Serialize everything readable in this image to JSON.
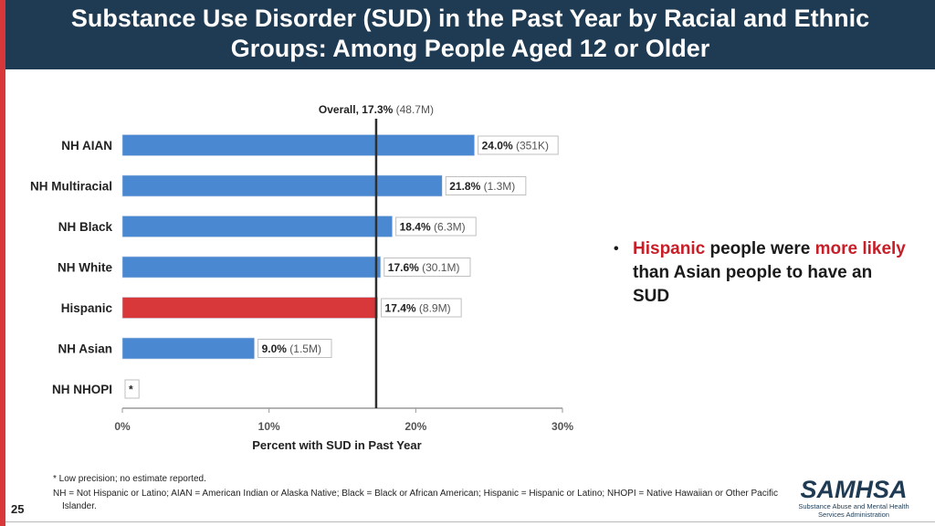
{
  "title_line1": "Substance Use Disorder (SUD) in the Past Year by Racial and Ethnic",
  "title_line2": "Groups: Among People Aged 12 or Older",
  "bullet": {
    "symbol": "•",
    "hispanic": "Hispanic",
    "text1": " people were ",
    "more_likely": "more likely",
    "text2": " than Asian people to have an SUD"
  },
  "notes": {
    "line1": "* Low precision; no estimate reported.",
    "line2": "NH = Not Hispanic or Latino; AIAN = American Indian or Alaska Native; Black = Black or African American; Hispanic = Hispanic or Latino; NHOPI = Native Hawaiian or Other Pacific Islander."
  },
  "page_number": "25",
  "logo": {
    "brand": "SAMHSA",
    "sub_line1": "Substance Abuse and Mental Health",
    "sub_line2": "Services Administration"
  },
  "colors": {
    "header_bg": "#1f3b53",
    "bar_default": "#4a89d1",
    "bar_highlight": "#d9383a",
    "accent_red": "#c81e28",
    "stripe": "#d9383a"
  },
  "chart_data": {
    "type": "bar",
    "orientation": "horizontal",
    "title": "",
    "xlabel": "Percent with SUD in Past Year",
    "ylabel": "",
    "xlim": [
      0,
      30
    ],
    "xticks": [
      "0%",
      "10%",
      "20%",
      "30%"
    ],
    "xtick_values": [
      0,
      10,
      20,
      30
    ],
    "categories": [
      "NH AIAN",
      "NH Multiracial",
      "NH Black",
      "NH White",
      "Hispanic",
      "NH Asian",
      "NH NHOPI"
    ],
    "values": [
      24.0,
      21.8,
      18.4,
      17.6,
      17.4,
      9.0,
      null
    ],
    "value_labels": [
      "24.0%",
      "21.8%",
      "18.4%",
      "17.6%",
      "17.4%",
      "9.0%",
      "*"
    ],
    "count_labels": [
      "(351K)",
      "(1.3M)",
      "(6.3M)",
      "(30.1M)",
      "(8.9M)",
      "(1.5M)",
      ""
    ],
    "highlight": [
      false,
      false,
      false,
      false,
      true,
      false,
      false
    ],
    "reference_line": {
      "value": 17.3,
      "label_bold": "Overall, 17.3%",
      "label_count": "(48.7M)"
    }
  }
}
